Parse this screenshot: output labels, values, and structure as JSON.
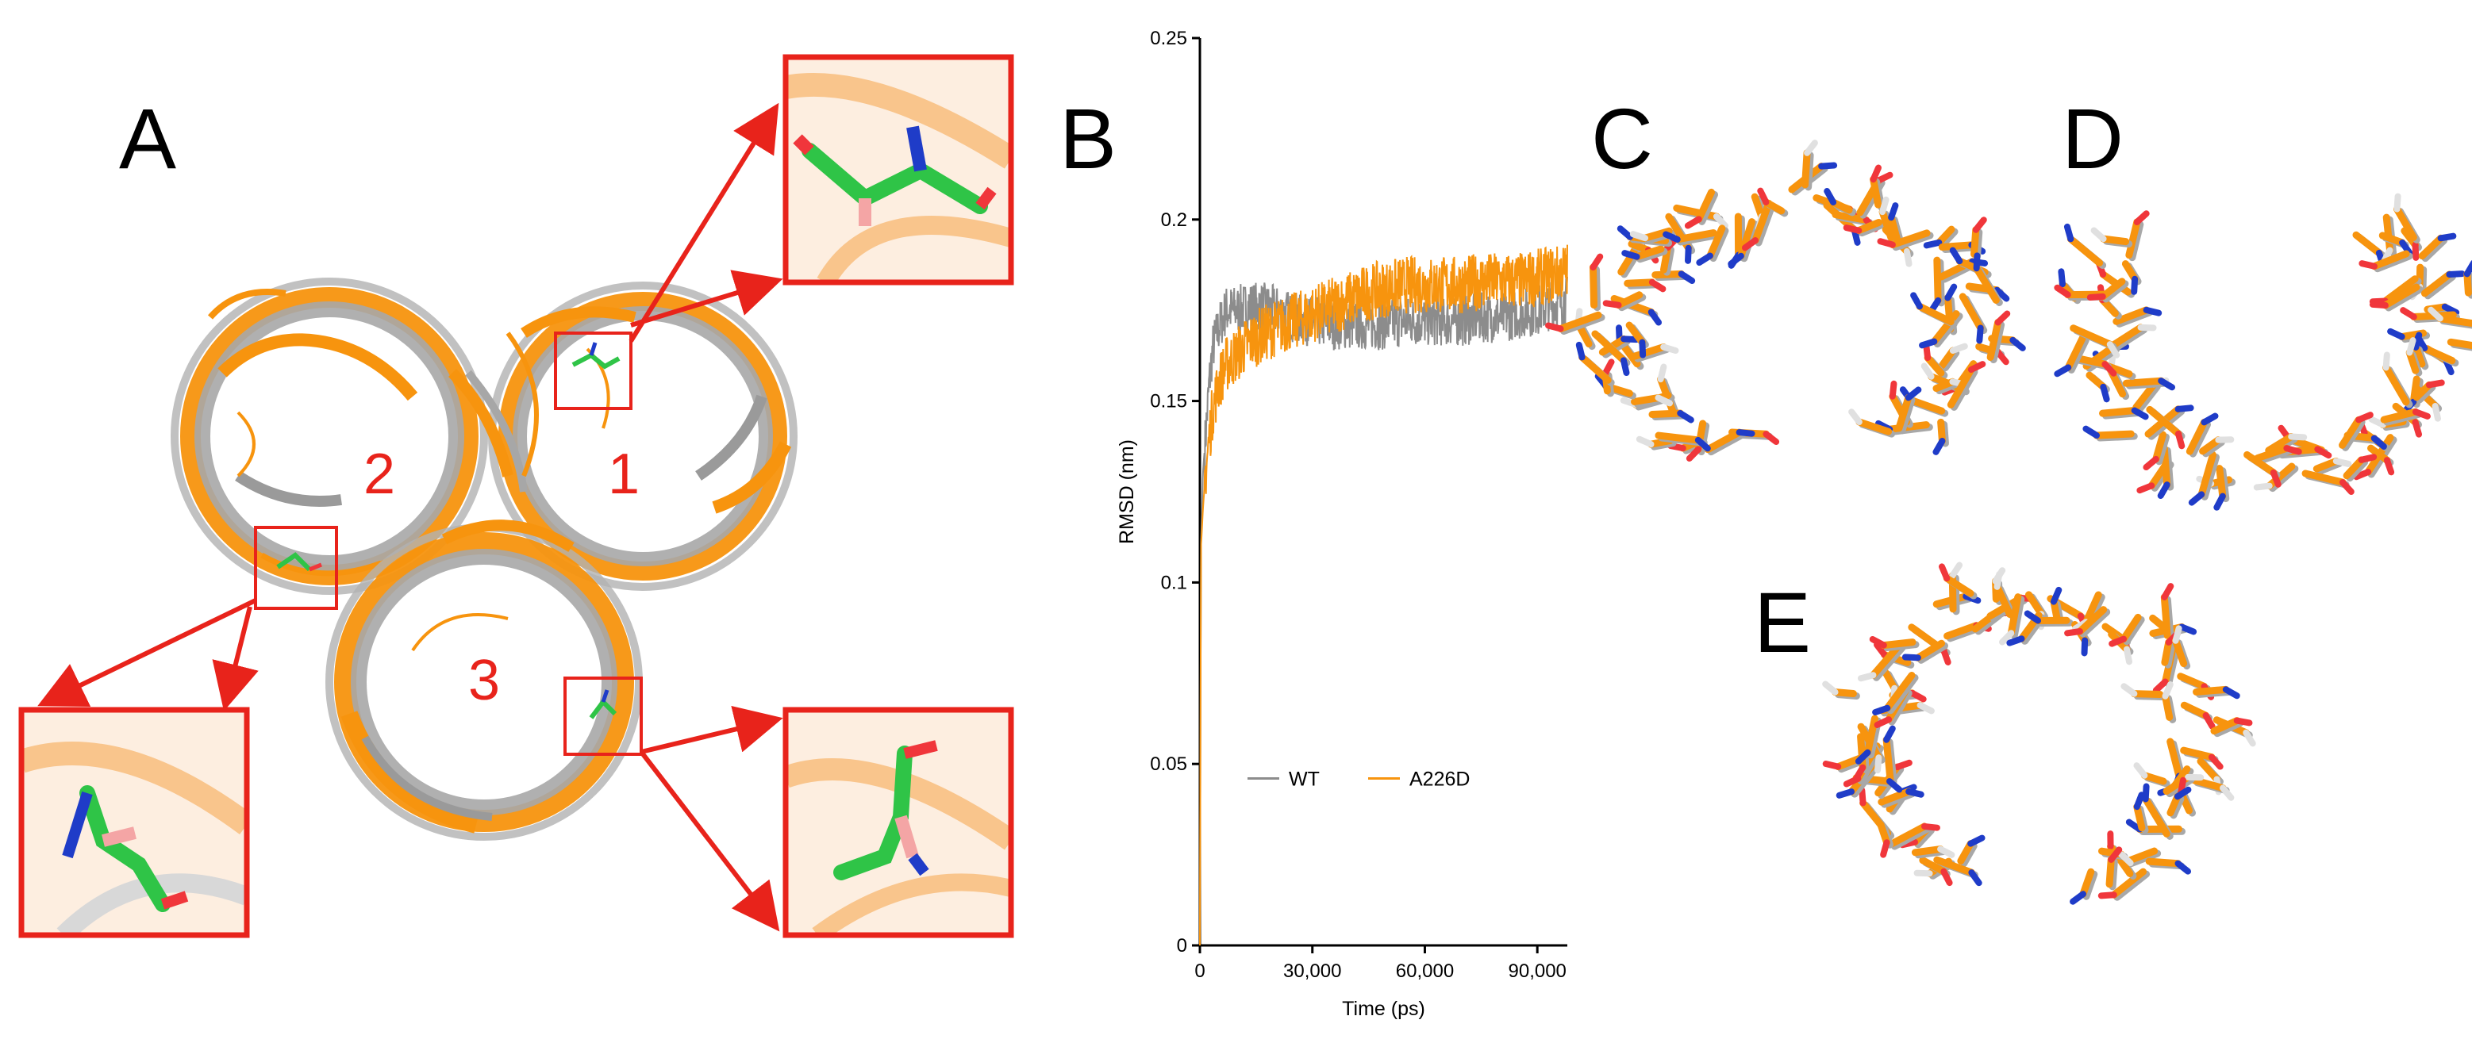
{
  "panels": {
    "a_letter": "A",
    "b_letter": "B",
    "c_letter": "C",
    "d_letter": "D",
    "e_letter": "E"
  },
  "subunit_labels": [
    "1",
    "2",
    "3"
  ],
  "colors": {
    "wt": "#8c8c8c",
    "mutant": "#f7940e",
    "highlight": "#e8231b",
    "carbon_green": "#2fc447",
    "nitrogen": "#1f3cc8",
    "oxygen": "#f0363b"
  },
  "chart_data": {
    "type": "line",
    "xlabel": "Time (ps)",
    "ylabel": "RMSD (nm)",
    "xlim": [
      0,
      98000
    ],
    "ylim": [
      0,
      0.25
    ],
    "xticks": [
      0,
      30000,
      60000,
      90000
    ],
    "xtick_labels": [
      "0",
      "30,000",
      "60,000",
      "90,000"
    ],
    "yticks": [
      0,
      0.05,
      0.1,
      0.15,
      0.2,
      0.25
    ],
    "ytick_labels": [
      "0",
      "0.05",
      "0.1",
      "0.15",
      "0.2",
      "0.25"
    ],
    "legend_position": "lower-left",
    "grid": false,
    "series": [
      {
        "name": "WT",
        "color": "#8c8c8c",
        "x": [
          0,
          300,
          800,
          1500,
          2500,
          3500,
          5000,
          7000,
          10000,
          13000,
          16000,
          20000,
          25000,
          30000,
          35000,
          40000,
          45000,
          50000,
          55000,
          60000,
          65000,
          70000,
          75000,
          80000,
          85000,
          90000,
          95000,
          98000
        ],
        "y": [
          0.0,
          0.11,
          0.13,
          0.14,
          0.155,
          0.165,
          0.17,
          0.175,
          0.175,
          0.176,
          0.176,
          0.175,
          0.173,
          0.172,
          0.171,
          0.171,
          0.171,
          0.171,
          0.172,
          0.172,
          0.172,
          0.172,
          0.173,
          0.173,
          0.174,
          0.175,
          0.177,
          0.178
        ],
        "noise": 0.007
      },
      {
        "name": "A226D",
        "color": "#f7940e",
        "x": [
          0,
          300,
          800,
          1500,
          2500,
          3500,
          5000,
          7000,
          10000,
          13000,
          16000,
          20000,
          25000,
          30000,
          35000,
          40000,
          45000,
          50000,
          55000,
          60000,
          65000,
          70000,
          75000,
          80000,
          85000,
          90000,
          95000,
          98000
        ],
        "y": [
          0.0,
          0.11,
          0.12,
          0.13,
          0.14,
          0.148,
          0.155,
          0.16,
          0.163,
          0.166,
          0.168,
          0.17,
          0.172,
          0.174,
          0.176,
          0.178,
          0.18,
          0.181,
          0.182,
          0.182,
          0.182,
          0.182,
          0.183,
          0.183,
          0.183,
          0.184,
          0.185,
          0.186
        ],
        "noise": 0.008
      }
    ]
  }
}
